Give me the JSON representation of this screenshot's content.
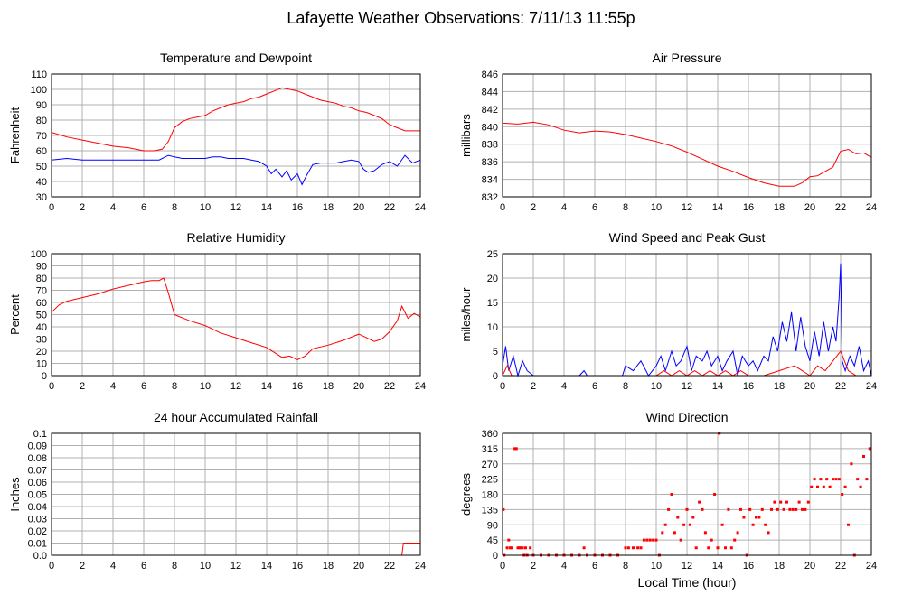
{
  "page": {
    "title": "Lafayette Weather Observations: 7/11/13 11:55p",
    "xlabel_bottom": "Local Time (hour)"
  },
  "colors": {
    "red": "#ff0000",
    "blue": "#0000ff",
    "grid": "#b0b0b0",
    "frame": "#000000"
  },
  "chart_data": [
    {
      "id": "temp",
      "type": "line",
      "title": "Temperature and Dewpoint",
      "ylabel": "Fahrenheit",
      "xlim": [
        0,
        24
      ],
      "ylim": [
        30,
        110
      ],
      "xticks": [
        0,
        2,
        4,
        6,
        8,
        10,
        12,
        14,
        16,
        18,
        20,
        22,
        24
      ],
      "yticks": [
        30,
        40,
        50,
        60,
        70,
        80,
        90,
        100,
        110
      ],
      "grid": true,
      "series": [
        {
          "color": "#ff0000",
          "x": [
            0,
            1,
            2,
            3,
            4,
            5,
            6,
            6.7,
            7.2,
            7.6,
            8,
            8.5,
            9,
            9.5,
            10,
            10.5,
            11,
            11.5,
            12,
            12.5,
            13,
            13.5,
            14,
            14.5,
            15,
            15.5,
            16,
            16.5,
            17,
            17.5,
            18,
            18.5,
            19,
            19.5,
            20,
            20.5,
            21,
            21.5,
            22,
            22.5,
            23,
            23.5,
            24
          ],
          "y": [
            72,
            69,
            67,
            65,
            63,
            62,
            60,
            60,
            61,
            66,
            75,
            79,
            81,
            82,
            83,
            86,
            88,
            90,
            91,
            92,
            94,
            95,
            97,
            99,
            101,
            100,
            99,
            97,
            95,
            93,
            92,
            91,
            89,
            88,
            86,
            85,
            83,
            81,
            77,
            75,
            73,
            73,
            73
          ]
        },
        {
          "color": "#0000ff",
          "x": [
            0,
            1,
            2,
            3,
            4,
            5,
            6,
            7,
            7.6,
            8,
            8.5,
            9,
            9.5,
            10,
            10.5,
            11,
            11.5,
            12,
            12.5,
            13,
            13.5,
            14,
            14.3,
            14.6,
            15,
            15.3,
            15.6,
            16,
            16.3,
            16.6,
            17,
            17.5,
            18,
            18.5,
            19,
            19.5,
            20,
            20.3,
            20.6,
            21,
            21.5,
            22,
            22.5,
            23,
            23.5,
            24
          ],
          "y": [
            54,
            55,
            54,
            54,
            54,
            54,
            54,
            54,
            57,
            56,
            55,
            55,
            55,
            55,
            56,
            56,
            55,
            55,
            55,
            54,
            53,
            50,
            45,
            48,
            43,
            47,
            41,
            45,
            38,
            44,
            51,
            52,
            52,
            52,
            53,
            54,
            53,
            48,
            46,
            47,
            51,
            53,
            50,
            57,
            52,
            54
          ]
        }
      ]
    },
    {
      "id": "pressure",
      "type": "line",
      "title": "Air Pressure",
      "ylabel": "millibars",
      "xlim": [
        0,
        24
      ],
      "ylim": [
        832,
        846
      ],
      "xticks": [
        0,
        2,
        4,
        6,
        8,
        10,
        12,
        14,
        16,
        18,
        20,
        22,
        24
      ],
      "yticks": [
        832,
        834,
        836,
        838,
        840,
        842,
        844,
        846
      ],
      "grid": true,
      "series": [
        {
          "color": "#ff0000",
          "x": [
            0,
            1,
            2,
            3,
            4,
            5,
            6,
            7,
            8,
            9,
            10,
            11,
            12,
            13,
            14,
            15,
            16,
            17,
            18,
            18.5,
            19,
            19.5,
            20,
            20.5,
            21,
            21.5,
            22,
            22.5,
            23,
            23.5,
            24
          ],
          "y": [
            840.4,
            840.3,
            840.5,
            840.2,
            839.6,
            839.3,
            839.5,
            839.4,
            839.1,
            838.7,
            838.3,
            837.8,
            837.1,
            836.3,
            835.5,
            834.9,
            834.2,
            833.6,
            833.2,
            833.2,
            833.2,
            833.6,
            834.3,
            834.4,
            834.9,
            835.4,
            837.2,
            837.4,
            836.9,
            837.0,
            836.5
          ]
        }
      ]
    },
    {
      "id": "humidity",
      "type": "line",
      "title": "Relative Humidity",
      "ylabel": "Percent",
      "xlim": [
        0,
        24
      ],
      "ylim": [
        0,
        100
      ],
      "xticks": [
        0,
        2,
        4,
        6,
        8,
        10,
        12,
        14,
        16,
        18,
        20,
        22,
        24
      ],
      "yticks": [
        0,
        10,
        20,
        30,
        40,
        50,
        60,
        70,
        80,
        90,
        100
      ],
      "grid": true,
      "series": [
        {
          "color": "#ff0000",
          "x": [
            0,
            0.5,
            1,
            2,
            3,
            4,
            5,
            6,
            6.5,
            7,
            7.3,
            7.6,
            8,
            9,
            10,
            11,
            12,
            13,
            14,
            14.5,
            15,
            15.5,
            16,
            16.5,
            17,
            18,
            19,
            20,
            20.5,
            21,
            21.5,
            22,
            22.5,
            22.8,
            23.2,
            23.6,
            24
          ],
          "y": [
            52,
            58,
            61,
            64,
            67,
            71,
            74,
            77,
            78,
            78,
            80,
            68,
            50,
            45,
            41,
            35,
            31,
            27,
            23,
            19,
            15,
            16,
            13,
            16,
            22,
            25,
            29,
            34,
            31,
            28,
            30,
            36,
            45,
            57,
            47,
            51,
            48
          ]
        }
      ]
    },
    {
      "id": "wind",
      "type": "line",
      "title": "Wind Speed and Peak Gust",
      "ylabel": "miles/hour",
      "xlim": [
        0,
        24
      ],
      "ylim": [
        0,
        25
      ],
      "xticks": [
        0,
        2,
        4,
        6,
        8,
        10,
        12,
        14,
        16,
        18,
        20,
        22,
        24
      ],
      "yticks": [
        0,
        5,
        10,
        15,
        20,
        25
      ],
      "grid": true,
      "series": [
        {
          "color": "#0000ff",
          "x": [
            0,
            0.2,
            0.4,
            0.7,
            1,
            1.3,
            1.6,
            2,
            3,
            4,
            5,
            5.3,
            5.5,
            6,
            7,
            7.8,
            8,
            8.5,
            9,
            9.5,
            10,
            10.3,
            10.6,
            11,
            11.3,
            11.6,
            12,
            12.3,
            12.6,
            13,
            13.3,
            13.6,
            14,
            14.3,
            14.6,
            15,
            15.3,
            15.6,
            16,
            16.3,
            16.6,
            17,
            17.3,
            17.6,
            17.9,
            18.2,
            18.5,
            18.8,
            19.1,
            19.4,
            19.7,
            20,
            20.3,
            20.6,
            20.9,
            21.2,
            21.5,
            21.7,
            21.9,
            22,
            22.1,
            22.3,
            22.6,
            22.9,
            23.2,
            23.5,
            23.8,
            24
          ],
          "y": [
            2,
            6,
            1,
            4,
            0,
            3,
            1,
            0,
            0,
            0,
            0,
            1,
            0,
            0,
            0,
            0,
            2,
            1,
            3,
            0,
            2,
            4,
            1,
            5,
            2,
            3,
            6,
            1,
            4,
            3,
            5,
            2,
            4,
            1,
            3,
            5,
            0,
            4,
            2,
            3,
            1,
            4,
            3,
            8,
            5,
            11,
            7,
            13,
            5,
            12,
            6,
            3,
            9,
            4,
            11,
            5,
            10,
            7,
            16,
            23,
            3,
            1,
            4,
            2,
            6,
            1,
            3,
            0
          ]
        },
        {
          "color": "#ff0000",
          "x": [
            0,
            0.3,
            0.6,
            1,
            2,
            8,
            10,
            10.5,
            11,
            11.5,
            12,
            12.5,
            13,
            13.5,
            14,
            14.5,
            15,
            15.5,
            16,
            17,
            18,
            19,
            19.5,
            20,
            20.5,
            21,
            21.5,
            22,
            22.5,
            23,
            24
          ],
          "y": [
            0,
            2,
            0,
            0,
            0,
            0,
            0,
            1,
            0,
            1,
            0,
            1,
            0,
            1,
            0,
            1,
            0,
            1,
            0,
            0,
            1,
            2,
            1,
            0,
            2,
            1,
            3,
            5,
            1,
            0,
            0
          ]
        }
      ]
    },
    {
      "id": "rain",
      "type": "line",
      "title": "24 hour Accumulated Rainfall",
      "ylabel": "Inches",
      "xlim": [
        0,
        24
      ],
      "ylim": [
        0,
        0.1
      ],
      "xticks": [
        0,
        2,
        4,
        6,
        8,
        10,
        12,
        14,
        16,
        18,
        20,
        22,
        24
      ],
      "yticks": [
        "0.0",
        "0.01",
        "0.02",
        "0.03",
        "0.04",
        "0.05",
        "0.06",
        "0.07",
        "0.08",
        "0.09",
        "0.1"
      ],
      "grid": true,
      "series": [
        {
          "color": "#ff0000",
          "x": [
            0,
            22.8,
            22.9,
            24
          ],
          "y": [
            0,
            0,
            0.01,
            0.01
          ]
        }
      ]
    },
    {
      "id": "direction",
      "type": "scatter",
      "title": "Wind Direction",
      "ylabel": "degrees",
      "xlabel": "Local Time (hour)",
      "xlim": [
        0,
        24
      ],
      "ylim": [
        0,
        360
      ],
      "xticks": [
        0,
        2,
        4,
        6,
        8,
        10,
        12,
        14,
        16,
        18,
        20,
        22,
        24
      ],
      "yticks": [
        0,
        45,
        90,
        135,
        180,
        225,
        270,
        315,
        360
      ],
      "grid": true,
      "series": [
        {
          "color": "#ff0000",
          "x": [
            0.05,
            0.1,
            0.3,
            0.4,
            0.5,
            0.6,
            0.8,
            0.9,
            1,
            1.1,
            1.2,
            1.3,
            1.4,
            1.5,
            1.6,
            1.8,
            2,
            2.5,
            3,
            3.5,
            4,
            4.5,
            5,
            5.3,
            5.5,
            6,
            6.5,
            7,
            7.5,
            8,
            8.2,
            8.5,
            8.8,
            9,
            9.2,
            9.4,
            9.6,
            9.8,
            10,
            10.2,
            10.4,
            10.6,
            10.8,
            11,
            11.2,
            11.4,
            11.6,
            11.8,
            12,
            12.2,
            12.4,
            12.6,
            12.8,
            13,
            13.2,
            13.4,
            13.6,
            13.8,
            14,
            14.1,
            14.3,
            14.5,
            14.7,
            14.9,
            15.1,
            15.3,
            15.5,
            15.7,
            15.9,
            16.1,
            16.3,
            16.5,
            16.7,
            16.9,
            17.1,
            17.3,
            17.5,
            17.7,
            17.9,
            18.1,
            18.3,
            18.5,
            18.7,
            18.9,
            19.1,
            19.3,
            19.5,
            19.7,
            19.9,
            20.1,
            20.3,
            20.5,
            20.7,
            20.9,
            21.1,
            21.3,
            21.5,
            21.7,
            21.9,
            22.1,
            22.3,
            22.5,
            22.7,
            22.9,
            23.1,
            23.3,
            23.5,
            23.7,
            23.9
          ],
          "y": [
            135,
            0,
            22,
            45,
            22,
            22,
            315,
            315,
            22,
            22,
            22,
            22,
            0,
            22,
            0,
            22,
            0,
            0,
            0,
            0,
            0,
            0,
            0,
            22,
            0,
            0,
            0,
            0,
            0,
            22,
            22,
            22,
            22,
            22,
            45,
            45,
            45,
            45,
            45,
            0,
            67,
            90,
            135,
            180,
            67,
            112,
            45,
            90,
            135,
            90,
            112,
            22,
            157,
            135,
            67,
            22,
            45,
            180,
            22,
            360,
            90,
            22,
            135,
            22,
            45,
            67,
            135,
            112,
            0,
            135,
            90,
            112,
            112,
            135,
            90,
            67,
            135,
            157,
            135,
            157,
            135,
            157,
            135,
            135,
            135,
            157,
            135,
            135,
            157,
            202,
            225,
            202,
            225,
            202,
            225,
            202,
            225,
            225,
            225,
            180,
            202,
            90,
            270,
            0,
            225,
            202,
            292,
            225,
            315
          ]
        }
      ]
    }
  ]
}
